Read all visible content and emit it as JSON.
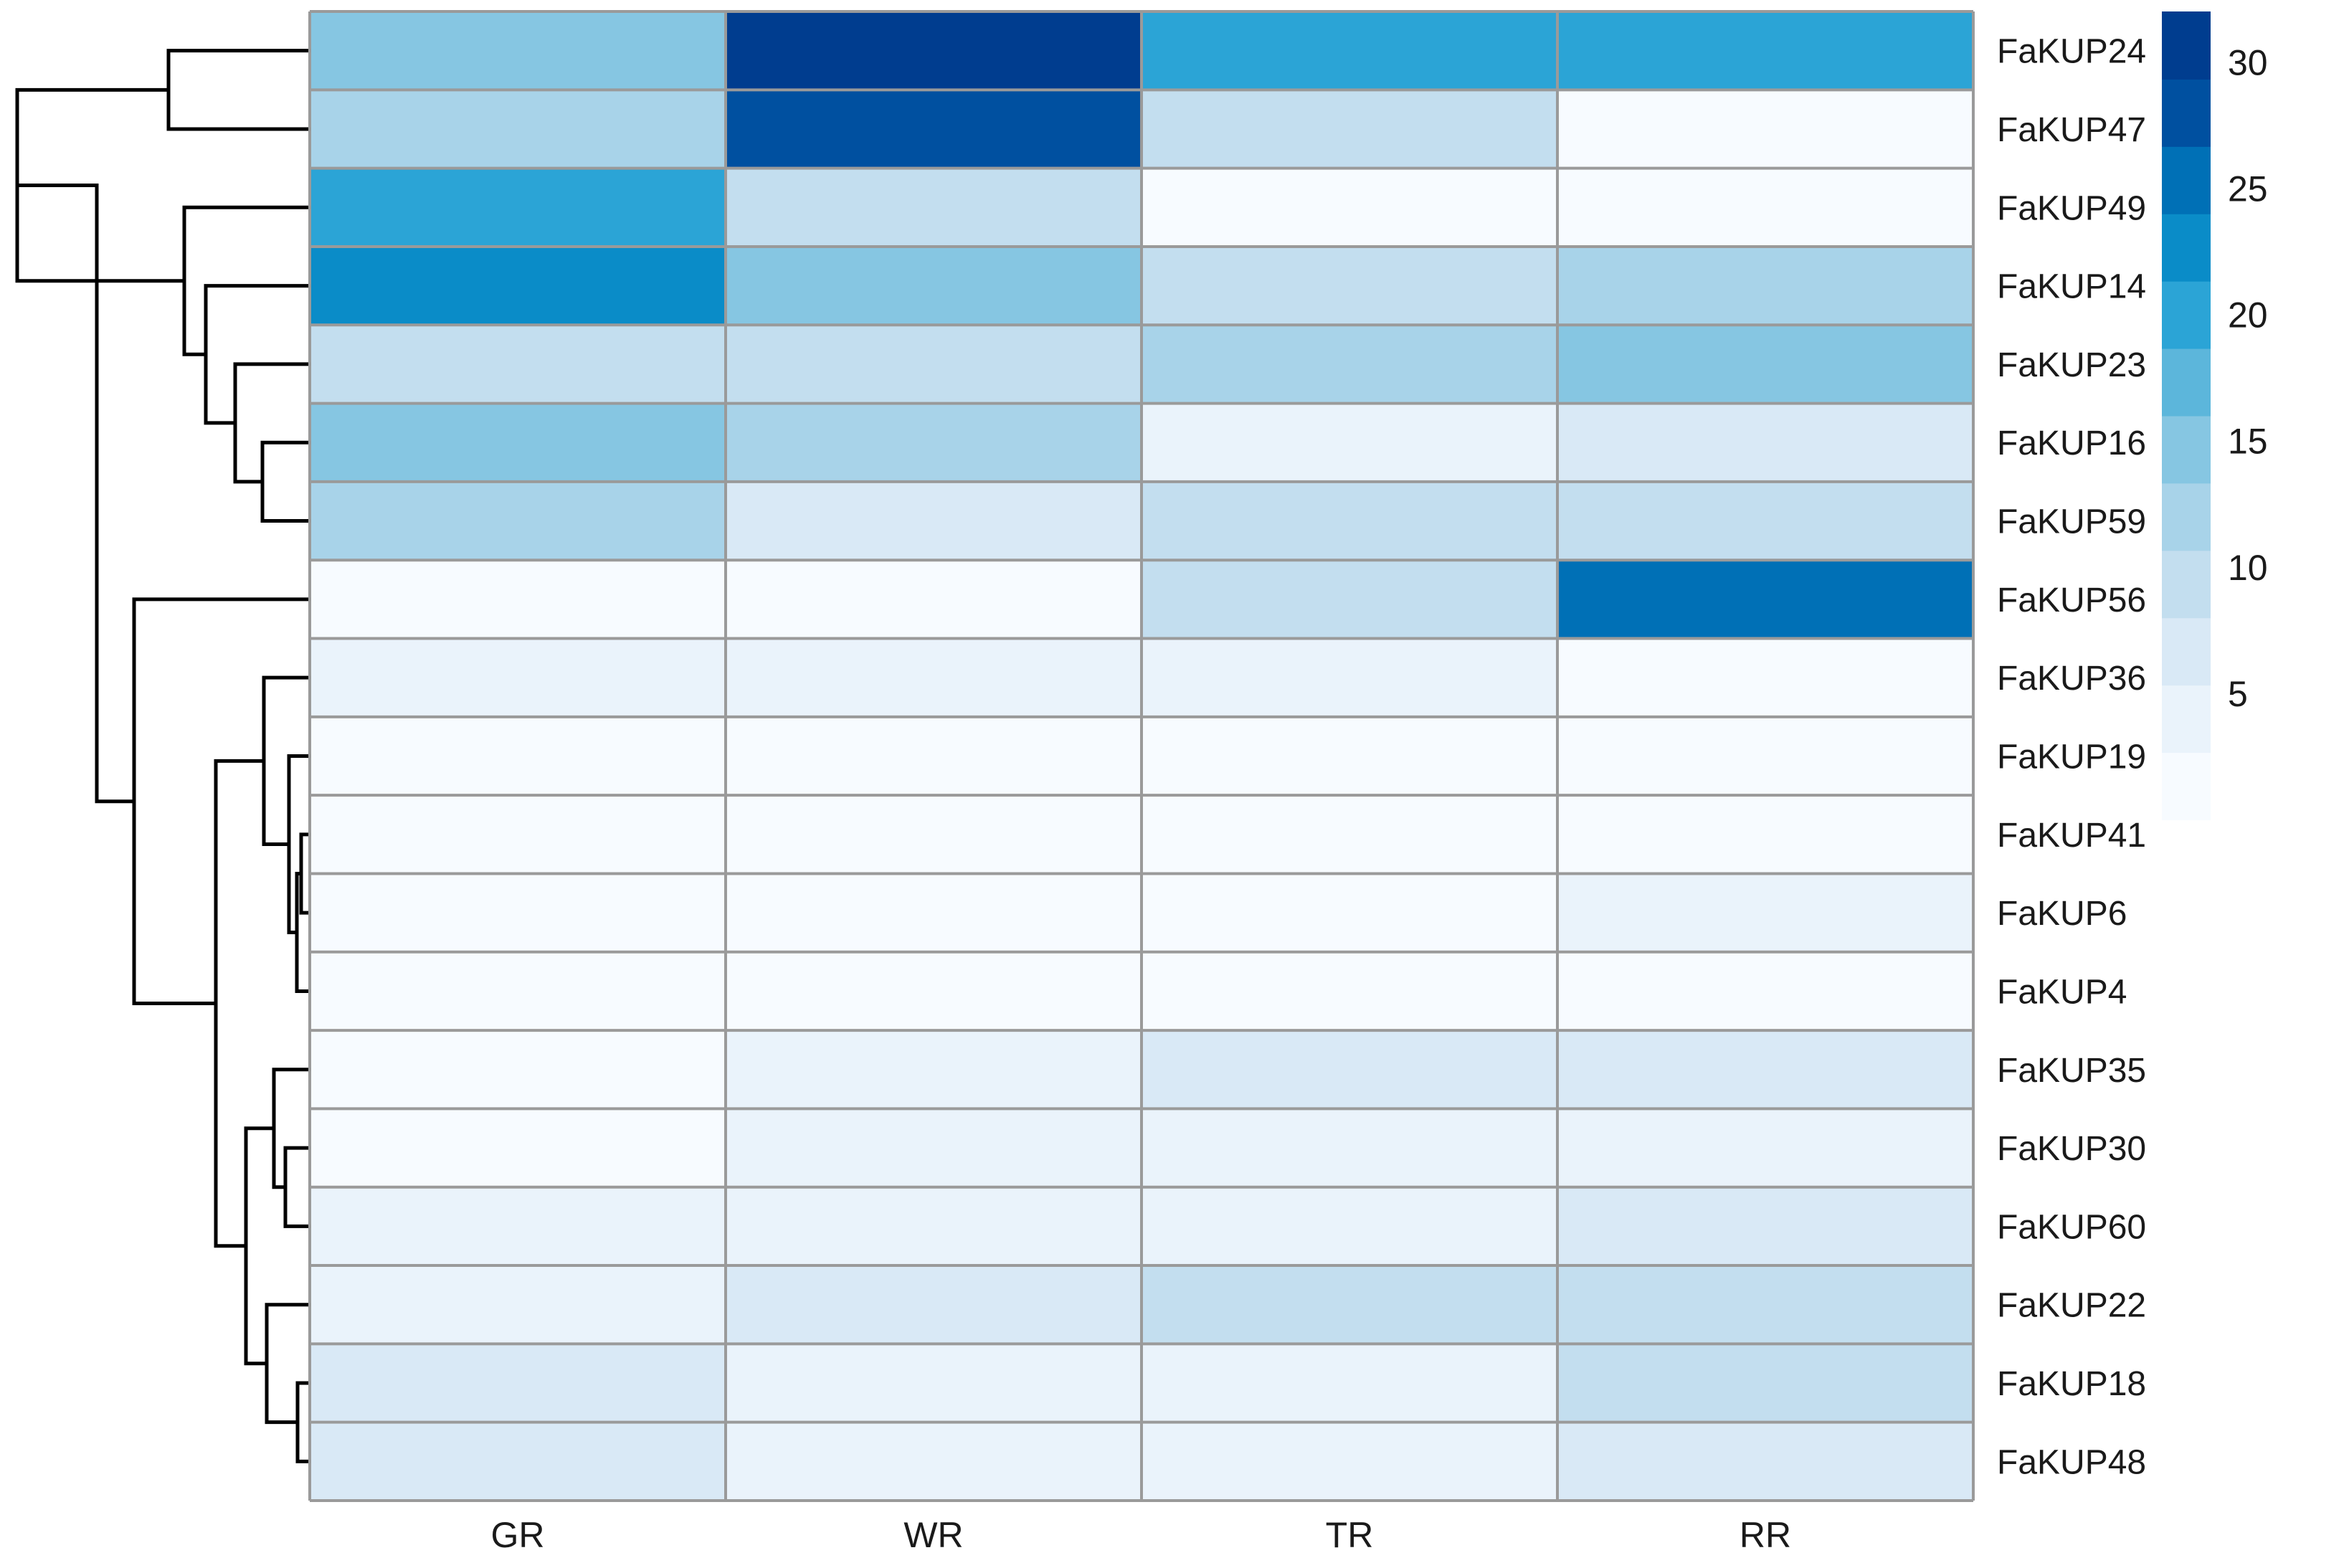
{
  "chart_data": {
    "type": "heatmap",
    "columns": [
      "GR",
      "WR",
      "TR",
      "RR"
    ],
    "rows": [
      "FaKUP24",
      "FaKUP47",
      "FaKUP49",
      "FaKUP14",
      "FaKUP23",
      "FaKUP16",
      "FaKUP59",
      "FaKUP56",
      "FaKUP36",
      "FaKUP19",
      "FaKUP41",
      "FaKUP6",
      "FaKUP4",
      "FaKUP35",
      "FaKUP30",
      "FaKUP60",
      "FaKUP22",
      "FaKUP18",
      "FaKUP48"
    ],
    "values": [
      [
        15,
        31,
        19,
        21
      ],
      [
        13,
        29,
        9,
        2
      ],
      [
        19,
        9,
        2,
        2
      ],
      [
        22,
        15,
        9,
        12
      ],
      [
        8,
        9,
        12,
        15
      ],
      [
        14,
        12,
        5,
        7
      ],
      [
        12,
        6,
        10,
        8
      ],
      [
        2,
        2,
        9,
        26
      ],
      [
        4,
        5,
        3,
        0.5
      ],
      [
        1,
        0.5,
        2,
        2
      ],
      [
        1,
        2,
        0.5,
        1.5
      ],
      [
        1,
        2,
        2,
        4
      ],
      [
        2,
        2,
        2,
        2
      ],
      [
        2,
        5,
        6,
        6
      ],
      [
        2,
        4,
        4,
        5
      ],
      [
        3,
        4,
        4,
        6
      ],
      [
        3,
        6,
        9,
        10
      ],
      [
        7,
        4,
        3,
        9
      ],
      [
        7,
        3,
        5,
        7
      ]
    ],
    "colorbar": {
      "ticks": [
        5,
        10,
        15,
        20,
        25,
        30
      ],
      "range": [
        0,
        32
      ],
      "colors": [
        "#f7fbff",
        "#eaf3fb",
        "#d9e9f6",
        "#c3deef",
        "#a8d3e9",
        "#86c6e2",
        "#5cb6db",
        "#2ba4d6",
        "#0a8cc8",
        "#0070b6",
        "#0050a0",
        "#003d8f"
      ]
    },
    "row_dendrogram": "hierarchical clustering tree on rows",
    "grid": true
  }
}
